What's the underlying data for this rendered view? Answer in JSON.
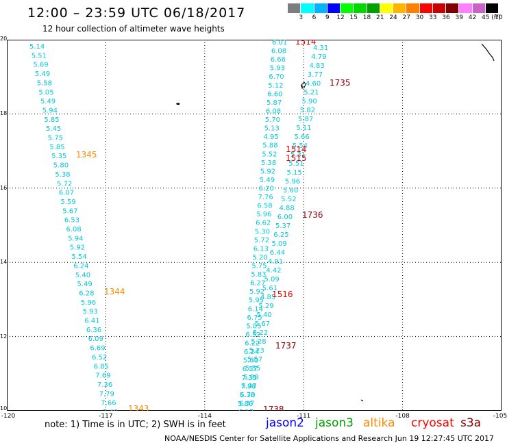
{
  "title": "12:00 – 23:59 UTC 06/18/2017",
  "subtitle": "12 hour collection of altimeter wave heights",
  "colorbar": {
    "colors": [
      "#7d7d7d",
      "#00ffff",
      "#00b4ff",
      "#0000ff",
      "#00ff00",
      "#00d800",
      "#00a000",
      "#ffff00",
      "#ffb400",
      "#ff8000",
      "#ff0000",
      "#c80000",
      "#800000",
      "#ff80ff",
      "#c864c8",
      "#000000"
    ],
    "labels": [
      "3",
      "6",
      "9",
      "12",
      "15",
      "18",
      "21",
      "24",
      "27",
      "30",
      "33",
      "36",
      "39",
      "42",
      "45",
      "70",
      "(ft)"
    ]
  },
  "axes": {
    "y_ticks": [
      "20",
      "18",
      "16",
      "14",
      "12",
      "10"
    ],
    "x_ticks": [
      "-120",
      "-117",
      "-114",
      "-111",
      "-108",
      "-105"
    ],
    "lon_range": [
      -120,
      -105
    ],
    "lat_range": [
      10,
      20
    ]
  },
  "times": {
    "cyan": [
      "1345",
      "1344",
      "1343"
    ],
    "red": [
      "1514",
      "1514",
      "1515",
      "1516"
    ],
    "darkred": [
      "1735",
      "1736",
      "1737",
      "1738"
    ]
  },
  "tracks": [
    {
      "name": "track-west",
      "color": "#00c8dc",
      "values": [
        "5.14",
        "5.51",
        "5.69",
        "5.49",
        "5.58",
        "5.05",
        "5.49",
        "5.94",
        "5.85",
        "5.45",
        "5.75",
        "5.85",
        "5.35",
        "5.80",
        "5.38",
        "5.72",
        "6.07",
        "5.59",
        "5.67",
        "6.53",
        "6.08",
        "5.94",
        "5.92",
        "5.54",
        "6.24",
        "5.40",
        "5.49",
        "6.28",
        "5.96",
        "5.93",
        "6.41",
        "6.36",
        "6.09",
        "6.69",
        "6.52",
        "6.85",
        "7.69",
        "7.36",
        "7.79",
        "7.66",
        "7.40"
      ]
    },
    {
      "name": "track-middle",
      "color": "#00c8dc",
      "values": [
        "6.01",
        "6.08",
        "6.66",
        "5.93",
        "6.70",
        "5.12",
        "6.60",
        "5.87",
        "6.08",
        "5.70",
        "5.13",
        "4.95",
        "5.88",
        "5.52",
        "5.38",
        "5.92",
        "5.49",
        "6.20",
        "7.76",
        "6.58",
        "5.96",
        "6.62",
        "5.30",
        "5.72",
        "6.13",
        "5.20",
        "5.75",
        "5.83",
        "6.27",
        "5.92",
        "5.95",
        "6.14",
        "6.75",
        "5.05",
        "6.52",
        "6.22",
        "6.24",
        "5.80",
        "6.57",
        "7.35",
        "7.98",
        "6.70",
        "6.37",
        "6.17"
      ]
    },
    {
      "name": "track-east",
      "color": "#00c8dc",
      "values": [
        "4.31",
        "4.79",
        "4.83",
        "3.77",
        "4.60",
        "5.21",
        "5.90",
        "5.82",
        "5.87",
        "5.11",
        "5.66",
        "5.54",
        "5.31",
        "5.51",
        "5.15",
        "5.96",
        "5.60",
        "5.52",
        "4.88",
        "6.00",
        "5.37",
        "6.25",
        "5.09",
        "6.44",
        "4.91",
        "4.42",
        "5.09",
        "5.61",
        "4.85",
        "5.29",
        "5.40",
        "5.67",
        "5.22",
        "5.28",
        "5.23",
        "5.57",
        "5.55",
        "5.98",
        "5.37",
        "5.38",
        "5.86"
      ]
    }
  ],
  "note": "note: 1) Time is in UTC; 2) SWH is in feet",
  "legend": [
    {
      "label": "jason2",
      "color": "#0000ff"
    },
    {
      "label": "jason3",
      "color": "#00a000"
    },
    {
      "label": "altika",
      "color": "#ff8c00"
    },
    {
      "label": "cryosat",
      "color": "#ff0000"
    },
    {
      "label": "s3a",
      "color": "#8b0000"
    }
  ],
  "footer": "NOAA/NESDIS Center for Satellite Applications and Research   Jun 19 12:27:45 UTC 2017"
}
